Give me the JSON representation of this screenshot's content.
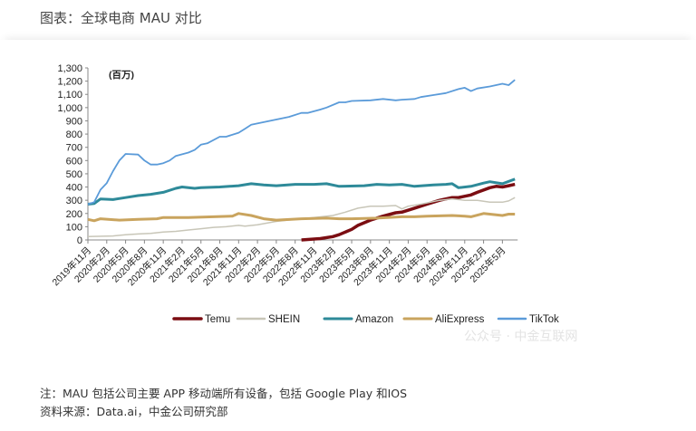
{
  "header": {
    "title": "图表：全球电商 MAU 对比"
  },
  "footer": {
    "note": "注：MAU 包括公司主要 APP 移动端所有设备，包括 Google Play 和IOS",
    "source": "资料来源：Data.ai，中金公司研究部"
  },
  "watermark": "公众号 · 中金互联网",
  "chart_data": {
    "type": "line",
    "title": "",
    "unit_label": "(百万)",
    "ylim": [
      0,
      1300
    ],
    "yticks": [
      "0",
      "100",
      "200",
      "300",
      "400",
      "500",
      "600",
      "700",
      "800",
      "900",
      "1,000",
      "1,100",
      "1,200",
      "1,300"
    ],
    "xticks": [
      "2019年11月",
      "2020年2月",
      "2020年5月",
      "2020年8月",
      "2020年11月",
      "2021年2月",
      "2021年5月",
      "2021年8月",
      "2021年11月",
      "2022年2月",
      "2022年5月",
      "2022年8月",
      "2022年11月",
      "2023年2月",
      "2023年5月",
      "2023年8月",
      "2023年11月",
      "2024年2月",
      "2024年5月",
      "2024年8月",
      "2024年11月",
      "2025年2月",
      "2025年5月"
    ],
    "xrange": [
      "2019-11",
      "2025-07"
    ],
    "grid": false,
    "legend_position": "bottom",
    "series": [
      {
        "name": "Temu",
        "color": "#7b0d12",
        "width": 3.5,
        "points": [
          [
            "2022-09",
            0
          ],
          [
            "2022-12",
            10
          ],
          [
            "2023-02",
            25
          ],
          [
            "2023-03",
            40
          ],
          [
            "2023-05",
            80
          ],
          [
            "2023-06",
            110
          ],
          [
            "2023-08",
            150
          ],
          [
            "2023-10",
            180
          ],
          [
            "2023-12",
            205
          ],
          [
            "2024-01",
            210
          ],
          [
            "2024-03",
            240
          ],
          [
            "2024-05",
            270
          ],
          [
            "2024-07",
            300
          ],
          [
            "2024-09",
            320
          ],
          [
            "2024-10",
            320
          ],
          [
            "2024-12",
            340
          ],
          [
            "2025-01",
            360
          ],
          [
            "2025-03",
            395
          ],
          [
            "2025-04",
            405
          ],
          [
            "2025-05",
            400
          ],
          [
            "2025-06",
            410
          ],
          [
            "2025-07",
            420
          ]
        ]
      },
      {
        "name": "SHEIN",
        "color": "#c8c6b8",
        "width": 1.5,
        "points": [
          [
            "2019-11",
            25
          ],
          [
            "2020-03",
            30
          ],
          [
            "2020-05",
            40
          ],
          [
            "2020-07",
            45
          ],
          [
            "2020-09",
            50
          ],
          [
            "2020-11",
            60
          ],
          [
            "2021-01",
            65
          ],
          [
            "2021-03",
            75
          ],
          [
            "2021-05",
            85
          ],
          [
            "2021-07",
            95
          ],
          [
            "2021-09",
            100
          ],
          [
            "2021-11",
            110
          ],
          [
            "2021-12",
            105
          ],
          [
            "2022-02",
            115
          ],
          [
            "2022-05",
            140
          ],
          [
            "2022-08",
            155
          ],
          [
            "2022-11",
            170
          ],
          [
            "2023-02",
            185
          ],
          [
            "2023-04",
            210
          ],
          [
            "2023-06",
            240
          ],
          [
            "2023-08",
            255
          ],
          [
            "2023-10",
            255
          ],
          [
            "2023-12",
            260
          ],
          [
            "2024-01",
            235
          ],
          [
            "2024-02",
            255
          ],
          [
            "2024-04",
            270
          ],
          [
            "2024-07",
            300
          ],
          [
            "2024-09",
            310
          ],
          [
            "2024-11",
            300
          ],
          [
            "2025-01",
            300
          ],
          [
            "2025-03",
            285
          ],
          [
            "2025-05",
            285
          ],
          [
            "2025-06",
            295
          ],
          [
            "2025-07",
            320
          ]
        ]
      },
      {
        "name": "Amazon",
        "color": "#2e8a99",
        "width": 3,
        "points": [
          [
            "2019-11",
            270
          ],
          [
            "2019-12",
            275
          ],
          [
            "2020-01",
            310
          ],
          [
            "2020-03",
            305
          ],
          [
            "2020-05",
            320
          ],
          [
            "2020-07",
            335
          ],
          [
            "2020-09",
            345
          ],
          [
            "2020-11",
            360
          ],
          [
            "2021-01",
            390
          ],
          [
            "2021-02",
            400
          ],
          [
            "2021-04",
            390
          ],
          [
            "2021-05",
            395
          ],
          [
            "2021-08",
            400
          ],
          [
            "2021-11",
            410
          ],
          [
            "2022-01",
            425
          ],
          [
            "2022-03",
            415
          ],
          [
            "2022-05",
            410
          ],
          [
            "2022-08",
            420
          ],
          [
            "2022-11",
            420
          ],
          [
            "2023-01",
            425
          ],
          [
            "2023-03",
            405
          ],
          [
            "2023-07",
            410
          ],
          [
            "2023-09",
            420
          ],
          [
            "2023-11",
            415
          ],
          [
            "2024-01",
            420
          ],
          [
            "2024-03",
            405
          ],
          [
            "2024-06",
            415
          ],
          [
            "2024-08",
            420
          ],
          [
            "2024-09",
            425
          ],
          [
            "2024-10",
            395
          ],
          [
            "2024-12",
            405
          ],
          [
            "2025-02",
            430
          ],
          [
            "2025-03",
            440
          ],
          [
            "2025-05",
            425
          ],
          [
            "2025-07",
            460
          ]
        ]
      },
      {
        "name": "AliExpress",
        "color": "#c9a45e",
        "width": 3,
        "points": [
          [
            "2019-11",
            155
          ],
          [
            "2019-12",
            145
          ],
          [
            "2020-01",
            160
          ],
          [
            "2020-04",
            150
          ],
          [
            "2020-07",
            155
          ],
          [
            "2020-10",
            160
          ],
          [
            "2020-11",
            170
          ],
          [
            "2021-03",
            170
          ],
          [
            "2021-07",
            175
          ],
          [
            "2021-10",
            180
          ],
          [
            "2021-11",
            200
          ],
          [
            "2022-01",
            185
          ],
          [
            "2022-03",
            160
          ],
          [
            "2022-05",
            150
          ],
          [
            "2022-09",
            160
          ],
          [
            "2023-01",
            165
          ],
          [
            "2023-03",
            160
          ],
          [
            "2023-05",
            160
          ],
          [
            "2023-09",
            165
          ],
          [
            "2024-01",
            175
          ],
          [
            "2024-03",
            175
          ],
          [
            "2024-05",
            180
          ],
          [
            "2024-09",
            185
          ],
          [
            "2024-11",
            180
          ],
          [
            "2024-12",
            175
          ],
          [
            "2025-02",
            200
          ],
          [
            "2025-05",
            185
          ],
          [
            "2025-06",
            195
          ],
          [
            "2025-07",
            195
          ]
        ]
      },
      {
        "name": "TikTok",
        "color": "#5b9bd9",
        "width": 1.8,
        "points": [
          [
            "2019-11",
            270
          ],
          [
            "2019-12",
            285
          ],
          [
            "2020-01",
            380
          ],
          [
            "2020-02",
            430
          ],
          [
            "2020-03",
            520
          ],
          [
            "2020-04",
            600
          ],
          [
            "2020-05",
            650
          ],
          [
            "2020-07",
            645
          ],
          [
            "2020-08",
            600
          ],
          [
            "2020-09",
            570
          ],
          [
            "2020-10",
            570
          ],
          [
            "2020-11",
            580
          ],
          [
            "2020-12",
            600
          ],
          [
            "2021-01",
            635
          ],
          [
            "2021-03",
            660
          ],
          [
            "2021-04",
            680
          ],
          [
            "2021-05",
            720
          ],
          [
            "2021-06",
            730
          ],
          [
            "2021-08",
            780
          ],
          [
            "2021-09",
            780
          ],
          [
            "2021-11",
            810
          ],
          [
            "2021-12",
            840
          ],
          [
            "2022-01",
            870
          ],
          [
            "2022-03",
            890
          ],
          [
            "2022-05",
            910
          ],
          [
            "2022-07",
            930
          ],
          [
            "2022-09",
            960
          ],
          [
            "2022-10",
            960
          ],
          [
            "2022-12",
            985
          ],
          [
            "2023-01",
            1000
          ],
          [
            "2023-03",
            1040
          ],
          [
            "2023-04",
            1040
          ],
          [
            "2023-05",
            1050
          ],
          [
            "2023-08",
            1055
          ],
          [
            "2023-10",
            1065
          ],
          [
            "2023-12",
            1055
          ],
          [
            "2024-01",
            1060
          ],
          [
            "2024-03",
            1065
          ],
          [
            "2024-04",
            1080
          ],
          [
            "2024-06",
            1095
          ],
          [
            "2024-08",
            1110
          ],
          [
            "2024-10",
            1140
          ],
          [
            "2024-11",
            1150
          ],
          [
            "2024-12",
            1125
          ],
          [
            "2025-01",
            1145
          ],
          [
            "2025-03",
            1160
          ],
          [
            "2025-05",
            1180
          ],
          [
            "2025-06",
            1170
          ],
          [
            "2025-07",
            1210
          ]
        ]
      }
    ]
  }
}
